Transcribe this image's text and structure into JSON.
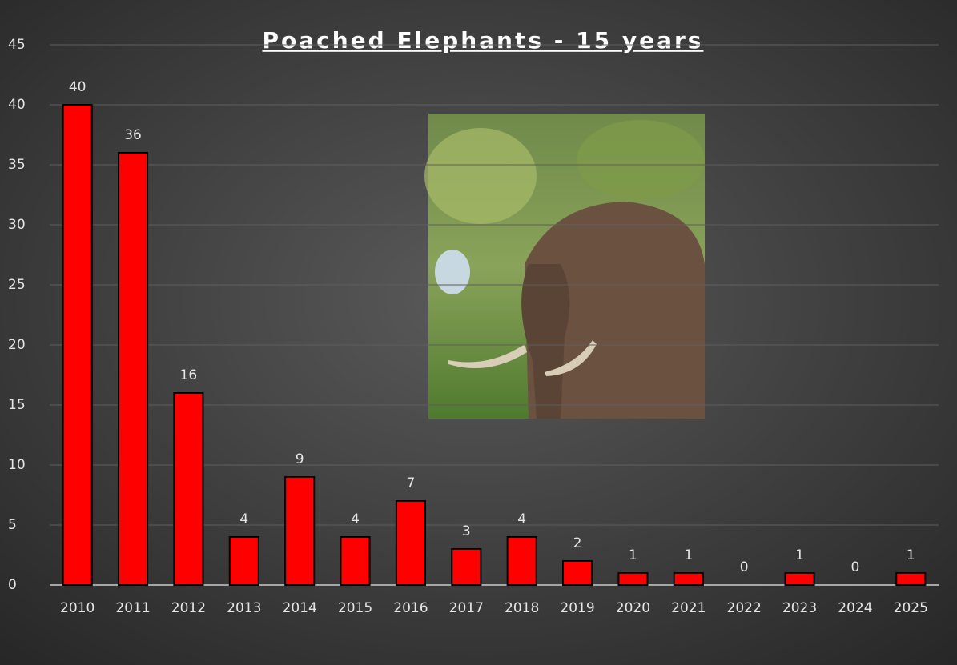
{
  "chart_data": {
    "type": "bar",
    "title": "Poached Elephants - 15 years",
    "categories": [
      "2010",
      "2011",
      "2012",
      "2013",
      "2014",
      "2015",
      "2016",
      "2017",
      "2018",
      "2019",
      "2020",
      "2021",
      "2022",
      "2023",
      "2024",
      "2025"
    ],
    "values": [
      40,
      36,
      16,
      4,
      9,
      4,
      7,
      3,
      4,
      2,
      1,
      1,
      0,
      1,
      0,
      1
    ],
    "color": "#ff0000",
    "ylim": [
      0,
      45
    ],
    "yticks": [
      0,
      5,
      10,
      15,
      20,
      25,
      30,
      35,
      40,
      45
    ],
    "grid": true
  }
}
